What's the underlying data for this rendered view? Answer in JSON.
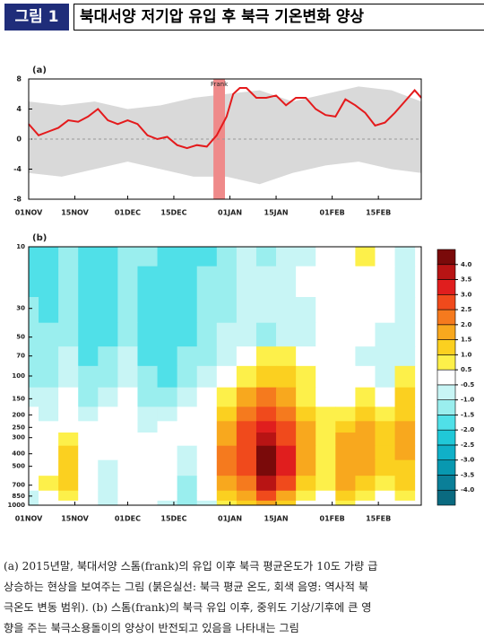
{
  "header": {
    "figure_label": "그림 1",
    "title": "북대서양 저기압 유입 후 북극 기온변화 양상"
  },
  "chart_data": [
    {
      "type": "line",
      "label": "(a)",
      "annotation": "Frank",
      "x": [
        0,
        3,
        6,
        9,
        12,
        15,
        18,
        21,
        24,
        27,
        30,
        33,
        36,
        39,
        42,
        45,
        48,
        51,
        54,
        57,
        60,
        62,
        64,
        66,
        69,
        72,
        75,
        78,
        81,
        84,
        87,
        90,
        93,
        96,
        99,
        102,
        105,
        108,
        111,
        114,
        117,
        119
      ],
      "series": [
        {
          "color": "#e41a1c",
          "values": [
            2.0,
            0.5,
            1.0,
            1.5,
            2.5,
            2.3,
            3.0,
            4.0,
            2.5,
            2.0,
            2.5,
            2.0,
            0.5,
            0.0,
            0.3,
            -0.8,
            -1.2,
            -0.8,
            -1.0,
            0.5,
            3.0,
            6.0,
            6.8,
            6.8,
            5.5,
            5.5,
            5.8,
            4.5,
            5.5,
            5.5,
            4.0,
            3.2,
            3.0,
            5.3,
            4.5,
            3.5,
            1.8,
            2.2,
            3.5,
            5.0,
            6.5,
            5.5
          ]
        }
      ],
      "band": {
        "color": "#d9d9d9",
        "x": [
          0,
          10,
          20,
          30,
          40,
          50,
          60,
          70,
          80,
          90,
          100,
          110,
          119
        ],
        "upper": [
          5,
          4.5,
          5,
          4,
          4.5,
          5.5,
          6,
          6.5,
          5,
          6,
          7,
          6.5,
          5
        ],
        "lower": [
          -4.5,
          -5,
          -4,
          -3,
          -4,
          -5,
          -5,
          -6,
          -4.5,
          -3.5,
          -3,
          -4,
          -4.5
        ]
      },
      "highlight": {
        "range": [
          56,
          59.5
        ],
        "color": "#ef8a8a"
      },
      "zero_line": true,
      "xlim": [
        0,
        119
      ],
      "xticks": [
        {
          "value": 0,
          "label": "01NOV"
        },
        {
          "value": 14,
          "label": "15NOV"
        },
        {
          "value": 30,
          "label": "01DEC"
        },
        {
          "value": 44,
          "label": "15DEC"
        },
        {
          "value": 61,
          "label": "01JAN"
        },
        {
          "value": 75,
          "label": "15JAN"
        },
        {
          "value": 92,
          "label": "01FEB"
        },
        {
          "value": 106,
          "label": "15FEB"
        }
      ],
      "ylim": [
        -8,
        8
      ],
      "yticks": [
        -8,
        -4,
        0,
        4,
        8
      ]
    },
    {
      "type": "heatmap",
      "label": "(b)",
      "x": [
        0,
        6,
        12,
        18,
        24,
        30,
        36,
        42,
        48,
        54,
        60,
        66,
        72,
        78,
        84,
        90,
        96,
        102,
        108,
        114
      ],
      "y": [
        10,
        20,
        30,
        50,
        70,
        100,
        150,
        200,
        250,
        300,
        400,
        500,
        700,
        850,
        1000
      ],
      "values": [
        [
          -1.5,
          -1.5,
          -1.0,
          -1.5,
          -1.5,
          -1.0,
          -1.0,
          -1.5,
          -1.5,
          -1.5,
          -1.0,
          -0.5,
          -1.0,
          -0.5,
          -0.5,
          0,
          0,
          0.5,
          0,
          -0.5
        ],
        [
          -1.5,
          -1.5,
          -1.0,
          -1.5,
          -1.5,
          -1.0,
          -1.5,
          -1.5,
          -1.5,
          -1.0,
          -1.0,
          -0.5,
          -0.5,
          -0.5,
          0,
          0,
          0,
          0,
          0,
          -0.5
        ],
        [
          -1.0,
          -1.5,
          -1.0,
          -1.5,
          -1.5,
          -1.0,
          -1.5,
          -1.5,
          -1.5,
          -1.0,
          -1.0,
          -0.5,
          -0.5,
          -0.5,
          -0.5,
          0,
          0,
          0,
          0,
          -0.5
        ],
        [
          -1.0,
          -1.0,
          -1.0,
          -1.5,
          -1.5,
          -1.0,
          -1.5,
          -1.5,
          -1.5,
          -1.0,
          -0.5,
          -0.5,
          -1.0,
          -0.5,
          -0.5,
          0,
          0,
          0,
          -0.5,
          -0.5
        ],
        [
          -1.0,
          -1.0,
          -0.5,
          -1.5,
          -1.0,
          -0.5,
          -1.5,
          -1.5,
          -1.0,
          -1.0,
          -0.5,
          0,
          0.5,
          0.5,
          0,
          0,
          0,
          -0.5,
          -0.5,
          -0.5
        ],
        [
          -1.0,
          -1.0,
          -0.5,
          -1.0,
          -1.0,
          -0.5,
          -1.0,
          -1.5,
          -1.0,
          -0.5,
          0,
          0.5,
          1.0,
          1.0,
          0.5,
          0,
          0,
          0,
          -0.5,
          0.5
        ],
        [
          -0.5,
          -0.5,
          0,
          -1.0,
          -0.5,
          0,
          -1.0,
          -1.0,
          -0.5,
          0,
          0.5,
          1.5,
          2.0,
          1.5,
          0.5,
          0,
          0,
          0.5,
          0,
          1.0
        ],
        [
          0,
          -0.5,
          0,
          -0.5,
          0,
          0,
          -0.5,
          -0.5,
          0,
          0,
          1.0,
          2.0,
          2.5,
          2.0,
          1.0,
          0.5,
          0.5,
          1.0,
          0.5,
          1.0
        ],
        [
          0,
          0,
          0,
          0,
          0,
          0,
          -0.5,
          0,
          0,
          0,
          1.5,
          2.5,
          3.0,
          2.5,
          1.5,
          0.5,
          1.0,
          1.5,
          1.0,
          1.5
        ],
        [
          0,
          0,
          0.5,
          0,
          0,
          0,
          0,
          0,
          0,
          0,
          1.5,
          2.5,
          3.5,
          2.5,
          1.5,
          0.5,
          1.5,
          1.5,
          1.0,
          1.5
        ],
        [
          0,
          0,
          1.0,
          0,
          0,
          0,
          0,
          0,
          -0.5,
          0,
          2.0,
          2.5,
          4.0,
          3.0,
          1.5,
          0.5,
          1.5,
          1.5,
          1.0,
          1.5
        ],
        [
          0,
          0,
          1.0,
          0,
          -0.5,
          0,
          0,
          0,
          -0.5,
          0,
          2.0,
          2.5,
          4.0,
          3.0,
          1.5,
          0.5,
          1.5,
          1.5,
          1.0,
          1.0
        ],
        [
          0,
          0.5,
          1.0,
          0,
          -0.5,
          0,
          0,
          0,
          -1.0,
          0,
          1.5,
          2.0,
          3.5,
          2.5,
          1.0,
          0.5,
          1.5,
          1.0,
          0.5,
          1.0
        ],
        [
          -0.5,
          0,
          0.5,
          0,
          -0.5,
          0,
          0,
          0,
          -1.0,
          0,
          1.0,
          1.5,
          2.5,
          1.5,
          0.5,
          0,
          1.0,
          0.5,
          0,
          0.5
        ],
        [
          -0.5,
          0,
          0,
          0,
          -0.5,
          0,
          0,
          -0.5,
          -1.0,
          -0.5,
          0.5,
          1.0,
          1.5,
          1.0,
          0,
          0,
          0.5,
          0,
          0,
          0
        ]
      ],
      "xlim": [
        0,
        119
      ],
      "xticks": [
        {
          "value": 0,
          "label": "01NOV"
        },
        {
          "value": 14,
          "label": "15NOV"
        },
        {
          "value": 30,
          "label": "01DEC"
        },
        {
          "value": 44,
          "label": "15DEC"
        },
        {
          "value": 61,
          "label": "01JAN"
        },
        {
          "value": 75,
          "label": "15JAN"
        },
        {
          "value": 92,
          "label": "01FEB"
        },
        {
          "value": 106,
          "label": "15FEB"
        }
      ],
      "ylim": [
        10,
        1000
      ],
      "log_y": true,
      "y_inverted": true,
      "yticks": [
        10,
        30,
        50,
        70,
        100,
        150,
        200,
        250,
        300,
        400,
        500,
        700,
        850,
        1000
      ],
      "colorbar": {
        "ticks": [
          {
            "value": -4,
            "label": "-4.0"
          },
          -3.5,
          {
            "value": -3,
            "label": "-3.0"
          },
          -2.5,
          {
            "value": -2,
            "label": "-2.0"
          },
          -1.5,
          {
            "value": -1,
            "label": "-1.0"
          },
          -0.5,
          0.5,
          {
            "value": 1,
            "label": "1.0"
          },
          1.5,
          {
            "value": 2,
            "label": "2.0"
          },
          2.5,
          {
            "value": 3,
            "label": "3.0"
          },
          3.5,
          {
            "value": 4,
            "label": "4.0"
          }
        ],
        "colors": [
          "#0a6a80",
          "#0a7f98",
          "#0898b0",
          "#10b0c8",
          "#20c8d8",
          "#50e0e8",
          "#9aeeee",
          "#c8f5f5",
          "#ffffff",
          "#fdf04a",
          "#fbd020",
          "#f8a81e",
          "#f57a1e",
          "#f04a1c",
          "#e01e1e",
          "#b81414",
          "#7a0a0a"
        ]
      }
    }
  ],
  "caption": {
    "lines": [
      "(a) 2015년말, 북대서양 스톰(frank)의 유입 이후 북극 평균온도가 10도 가량 급",
      "상승하는 현상을 보여주는 그림 (붉은실선: 북극 평균 온도, 회색 음영: 역사적 북",
      "극온도 변동 범위). (b) 스톰(frank)의 북극 유입 이후, 중위도 기상/기후에 큰 영",
      "향을 주는 북극소용돌이의 양상이 반전되고 있음을 나타내는 그림"
    ]
  }
}
